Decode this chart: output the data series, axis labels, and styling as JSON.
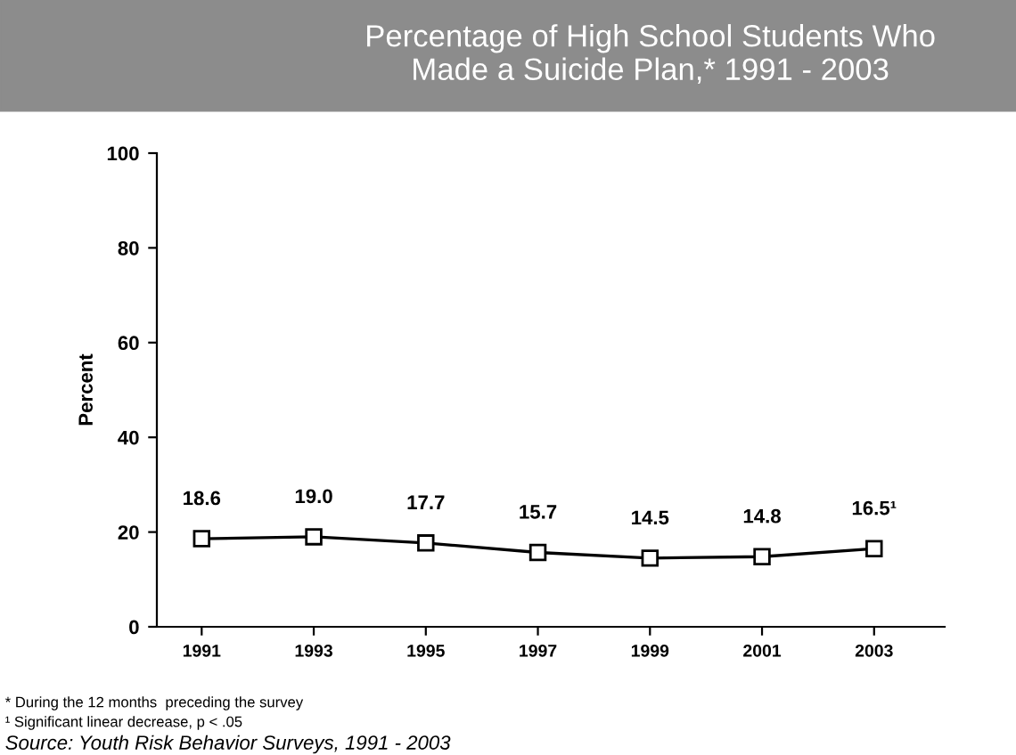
{
  "chart_data": {
    "type": "line",
    "title": "Percentage of High School Students Who\nMade a Suicide Plan,* 1991 - 2003",
    "ylabel": "Percent",
    "categories": [
      "1991",
      "1993",
      "1995",
      "1997",
      "1999",
      "2001",
      "2003"
    ],
    "series": [
      {
        "color": "#000000",
        "values": [
          18.6,
          19.0,
          17.7,
          15.7,
          14.5,
          14.8,
          16.5
        ],
        "value_labels": [
          "18.6",
          "19.0",
          "17.7",
          "15.7",
          "14.5",
          "14.8",
          "16.5¹"
        ]
      }
    ],
    "ylim": [
      0,
      100
    ],
    "yticks": [
      0,
      20,
      40,
      60,
      80,
      100
    ],
    "marker": "square",
    "grid": false,
    "annotations": [
      "* During the 12 months  preceding the survey",
      "¹ Significant linear decrease, p < .05",
      "Source: Youth Risk Behavior Surveys, 1991 - 2003"
    ]
  }
}
